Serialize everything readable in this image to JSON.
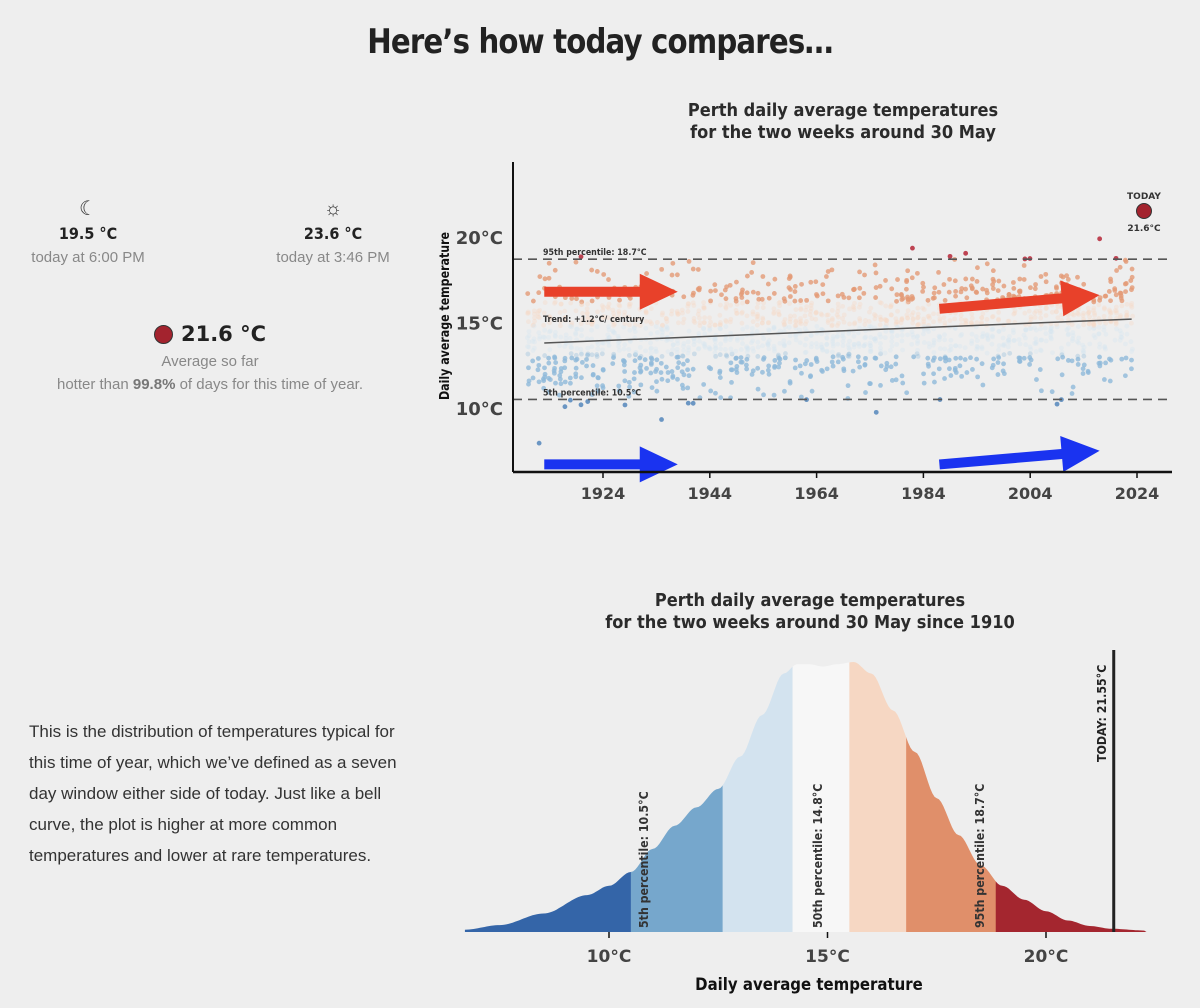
{
  "header": {
    "title": "Here’s how today compares…"
  },
  "stats": {
    "low": {
      "icon": "moon-icon",
      "value": "19.5 °C",
      "time": "today at 6:00 PM"
    },
    "high": {
      "icon": "sun-icon",
      "value": "23.6 °C",
      "time": "today at 3:46 PM"
    },
    "average": {
      "value": "21.6 °C",
      "label": "Average so far",
      "comparison_prefix": "hotter than ",
      "comparison_pct": "99.8%",
      "comparison_suffix": " of days for this time of year.",
      "dot_color": "#a3232e"
    }
  },
  "description": "This is the distribution of temperatures typical for this time of year, which we’ve defined as a seven day window either side of today. Just like a bell curve, the plot is higher at more common temperatures and lower at rare temperatures.",
  "chart_data": [
    {
      "type": "scatter",
      "title_line1": "Perth daily average temperatures",
      "title_line2": "for the two weeks around 30 May",
      "ylabel": "Daily average temperature",
      "xlabel": "",
      "x_ticks": [
        "1924",
        "1944",
        "1964",
        "1984",
        "2004",
        "2024"
      ],
      "x_tick_values": [
        1924,
        1944,
        1964,
        1984,
        2004,
        2024
      ],
      "y_ticks": [
        "10°C",
        "15°C",
        "20°C"
      ],
      "y_tick_values": [
        10,
        15,
        20
      ],
      "xlim": [
        1907,
        2030
      ],
      "ylim": [
        6,
        24
      ],
      "years_range": [
        1910,
        2023
      ],
      "percentile_lines": [
        {
          "label": "95th percentile: 18.7°C",
          "value": 18.7
        },
        {
          "label": "5th percentile: 10.5°C",
          "value": 10.5
        }
      ],
      "trend": {
        "label": "Trend: +1.2°C/ century",
        "start": [
          1913,
          13.8
        ],
        "end": [
          2023,
          15.2
        ]
      },
      "today": {
        "label": "TODAY",
        "value_label": "21.6°C",
        "year": 2024,
        "value": 21.6
      },
      "arrows": [
        {
          "color": "#e8412a",
          "from": [
            1913,
            16.8
          ],
          "to": [
            1938,
            16.8
          ]
        },
        {
          "color": "#e8412a",
          "from": [
            1987,
            15.8
          ],
          "to": [
            2017,
            16.6
          ]
        },
        {
          "color": "#1a33f0",
          "from": [
            1913,
            6.7
          ],
          "to": [
            1938,
            6.7
          ]
        },
        {
          "color": "#1a33f0",
          "from": [
            1987,
            6.7
          ],
          "to": [
            2017,
            7.5
          ]
        }
      ],
      "point_colors": {
        "hot": "#b2182b",
        "warm": "#e39a76",
        "mild_warm": "#f6d6c4",
        "mild_cool": "#d4e4f1",
        "cool": "#8fb9da",
        "cold": "#4a7fb8"
      }
    },
    {
      "type": "area",
      "title_line1": "Perth daily average temperatures",
      "title_line2": "for the two weeks around 30 May since 1910",
      "xlabel": "Daily average temperature",
      "x_ticks": [
        "10°C",
        "15°C",
        "20°C"
      ],
      "x_tick_values": [
        10,
        15,
        20
      ],
      "xlim": [
        6.7,
        22.3
      ],
      "density_points": [
        [
          6.7,
          0.005
        ],
        [
          7.5,
          0.015
        ],
        [
          8.5,
          0.04
        ],
        [
          9.5,
          0.08
        ],
        [
          10,
          0.1
        ],
        [
          10.5,
          0.13
        ],
        [
          11,
          0.18
        ],
        [
          11.5,
          0.23
        ],
        [
          12,
          0.27
        ],
        [
          12.5,
          0.31
        ],
        [
          13,
          0.38
        ],
        [
          13.5,
          0.47
        ],
        [
          14,
          0.56
        ],
        [
          14.3,
          0.58
        ],
        [
          14.6,
          0.58
        ],
        [
          14.9,
          0.575
        ],
        [
          15.2,
          0.58
        ],
        [
          15.6,
          0.585
        ],
        [
          16,
          0.56
        ],
        [
          16.5,
          0.48
        ],
        [
          17,
          0.39
        ],
        [
          17.5,
          0.29
        ],
        [
          18,
          0.21
        ],
        [
          18.5,
          0.145
        ],
        [
          19,
          0.1
        ],
        [
          19.5,
          0.07
        ],
        [
          20,
          0.045
        ],
        [
          20.5,
          0.025
        ],
        [
          21,
          0.013
        ],
        [
          21.5,
          0.007
        ],
        [
          22.3,
          0.003
        ]
      ],
      "bands": [
        {
          "from": 6.7,
          "to": 10.5,
          "color": "#3465a8"
        },
        {
          "from": 10.5,
          "to": 12.6,
          "color": "#76a7cc"
        },
        {
          "from": 12.6,
          "to": 14.2,
          "color": "#d3e3ef"
        },
        {
          "from": 14.2,
          "to": 15.5,
          "color": "#f7f7f7"
        },
        {
          "from": 15.5,
          "to": 16.8,
          "color": "#f6d7c3"
        },
        {
          "from": 16.8,
          "to": 18.85,
          "color": "#e08f6a"
        },
        {
          "from": 18.85,
          "to": 22.3,
          "color": "#a4262f"
        }
      ],
      "percentile_labels": [
        {
          "label": "5th percentile:  10.5°C",
          "value": 10.5
        },
        {
          "label": "50th percentile: 14.8°C",
          "value": 14.8
        },
        {
          "label": "95th percentile:  18.7°C",
          "value": 18.7
        }
      ],
      "today": {
        "label": "TODAY:  21.55°C",
        "value": 21.55
      }
    }
  ]
}
